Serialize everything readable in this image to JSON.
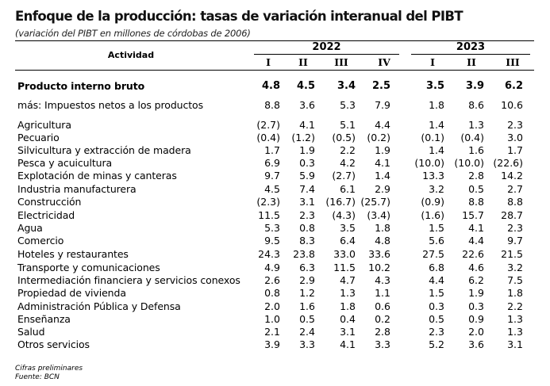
{
  "title": "Enfoque de la producción: tasas de variación interanual del PIBT",
  "subtitle": "(variación del PIBT en millones de córdobas de 2006)",
  "header": {
    "activity": "Actividad",
    "years": [
      "2022",
      "2023"
    ],
    "quarters": [
      "I",
      "II",
      "III",
      "IV",
      "I",
      "II",
      "III"
    ]
  },
  "rows": [
    {
      "label": "Producto interno bruto",
      "bold": true,
      "values": [
        "4.8",
        "4.5",
        "3.4",
        "2.5",
        "3.5",
        "3.9",
        "6.2"
      ]
    },
    {
      "label": "más: Impuestos netos a los productos",
      "values": [
        "8.8",
        "3.6",
        "5.3",
        "7.9",
        "1.8",
        "8.6",
        "10.6"
      ]
    },
    {
      "label": "Agricultura",
      "values": [
        "(2.7)",
        "4.1",
        "5.1",
        "4.4",
        "1.4",
        "1.3",
        "2.3"
      ]
    },
    {
      "label": "Pecuario",
      "values": [
        "(0.4)",
        "(1.2)",
        "(0.5)",
        "(0.2)",
        "(0.1)",
        "(0.4)",
        "3.0"
      ]
    },
    {
      "label": "Silvicultura y extracción de madera",
      "values": [
        "1.7",
        "1.9",
        "2.2",
        "1.9",
        "1.4",
        "1.6",
        "1.7"
      ]
    },
    {
      "label": "Pesca y acuicultura",
      "values": [
        "6.9",
        "0.3",
        "4.2",
        "4.1",
        "(10.0)",
        "(10.0)",
        "(22.6)"
      ]
    },
    {
      "label": "Explotación de minas y canteras",
      "values": [
        "9.7",
        "5.9",
        "(2.7)",
        "1.4",
        "13.3",
        "2.8",
        "14.2"
      ]
    },
    {
      "label": "Industria manufacturera",
      "values": [
        "4.5",
        "7.4",
        "6.1",
        "2.9",
        "3.2",
        "0.5",
        "2.7"
      ]
    },
    {
      "label": "Construcción",
      "values": [
        "(2.3)",
        "3.1",
        "(16.7)",
        "(25.7)",
        "(0.9)",
        "8.8",
        "8.8"
      ]
    },
    {
      "label": "Electricidad",
      "values": [
        "11.5",
        "2.3",
        "(4.3)",
        "(3.4)",
        "(1.6)",
        "15.7",
        "28.7"
      ]
    },
    {
      "label": "Agua",
      "values": [
        "5.3",
        "0.8",
        "3.5",
        "1.8",
        "1.5",
        "4.1",
        "2.3"
      ]
    },
    {
      "label": "Comercio",
      "values": [
        "9.5",
        "8.3",
        "6.4",
        "4.8",
        "5.6",
        "4.4",
        "9.7"
      ]
    },
    {
      "label": "Hoteles y restaurantes",
      "values": [
        "24.3",
        "23.8",
        "33.0",
        "33.6",
        "27.5",
        "22.6",
        "21.5"
      ]
    },
    {
      "label": "Transporte y comunicaciones",
      "values": [
        "4.9",
        "6.3",
        "11.5",
        "10.2",
        "6.8",
        "4.6",
        "3.2"
      ]
    },
    {
      "label": "Intermediación financiera y servicios conexos",
      "values": [
        "2.6",
        "2.9",
        "4.7",
        "4.3",
        "4.4",
        "6.2",
        "7.5"
      ]
    },
    {
      "label": "Propiedad de vivienda",
      "values": [
        "0.8",
        "1.2",
        "1.3",
        "1.1",
        "1.5",
        "1.9",
        "1.8"
      ]
    },
    {
      "label": "Administración Pública y Defensa",
      "values": [
        "2.0",
        "1.6",
        "1.8",
        "0.6",
        "0.3",
        "0.3",
        "2.2"
      ]
    },
    {
      "label": "Enseñanza",
      "values": [
        "1.0",
        "0.5",
        "0.4",
        "0.2",
        "0.5",
        "0.9",
        "1.3"
      ]
    },
    {
      "label": "Salud",
      "values": [
        "2.1",
        "2.4",
        "3.1",
        "2.8",
        "2.3",
        "2.0",
        "1.3"
      ]
    },
    {
      "label": "Otros servicios",
      "values": [
        "3.9",
        "3.3",
        "4.1",
        "3.3",
        "5.2",
        "3.6",
        "3.1"
      ]
    }
  ],
  "footnotes": [
    "Cifras preliminares",
    "Fuente: BCN"
  ]
}
